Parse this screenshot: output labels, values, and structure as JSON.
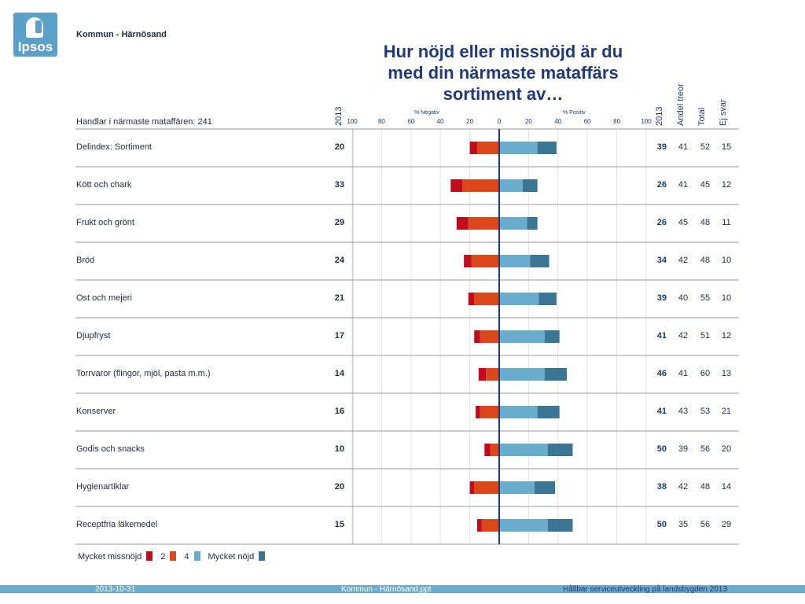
{
  "logo": {
    "text": "Ipsos"
  },
  "org": "Kommun - Härnösand",
  "title_lines": [
    "Hur nöjd eller missnöjd är du",
    "med din närmaste mataffärs",
    "sortiment av…"
  ],
  "base_label": "Handlar i närmaste mataffären: 241",
  "headers": {
    "neg_year": "2013",
    "pos_year": "2013",
    "andel": "Andel treor",
    "total": "Total",
    "ej": "Ej svar"
  },
  "colors": {
    "very_dissatisfied": "#c00d1e",
    "level2": "#d9471a",
    "level4": "#6aaccc",
    "very_satisfied": "#3a7594",
    "axis": "#1f3a74"
  },
  "legend": [
    {
      "label": "Mycket missnöjd",
      "swatch": null
    },
    {
      "label": "",
      "swatch": "very_dissatisfied"
    },
    {
      "label": "2",
      "swatch": "level2"
    },
    {
      "label": "4",
      "swatch": "level4"
    },
    {
      "label": "Mycket nöjd",
      "swatch": "very_satisfied"
    }
  ],
  "footer": {
    "date": "2013-10-31",
    "file": "Kommun - Härnösand.ppt",
    "project": "Hållbar serviceutveckling på landsbygden 2013"
  },
  "chart_data": {
    "type": "bar",
    "orientation": "horizontal-diverging-stacked",
    "title": "Hur nöjd eller missnöjd är du med din närmaste mataffärs sortiment av…",
    "axis_label_negative": "% Negativ",
    "axis_label_positive": "% Positiv",
    "x_ticks": [
      "100",
      "80",
      "60",
      "40",
      "20",
      "0",
      "20",
      "40",
      "60",
      "80",
      "100"
    ],
    "xlim": [
      -100,
      100
    ],
    "grid": true,
    "legend_position": "bottom-left",
    "categories": [
      "Delindex: Sortiment",
      "Kött och chark",
      "Frukt och grönt",
      "Bröd",
      "Ost och mejeri",
      "Djupfryst",
      "Torrvaror (flingor, mjöl, pasta m.m.)",
      "Konserver",
      "Godis och snacks",
      "Hygienartiklar",
      "Receptfria läkemedel"
    ],
    "series": [
      {
        "key": "very_dissatisfied",
        "values": [
          5,
          8,
          8,
          5,
          4,
          4,
          5,
          3,
          4,
          3,
          3
        ]
      },
      {
        "key": "level2",
        "values": [
          15,
          25,
          21,
          19,
          17,
          13,
          9,
          13,
          6,
          17,
          12
        ]
      },
      {
        "key": "level4",
        "values": [
          26,
          16,
          19,
          21,
          27,
          31,
          31,
          26,
          33,
          24,
          33
        ]
      },
      {
        "key": "very_satisfied",
        "values": [
          13,
          10,
          7,
          13,
          12,
          10,
          15,
          15,
          17,
          14,
          17
        ]
      }
    ],
    "negative_2013": [
      "20",
      "33",
      "29",
      "24",
      "21",
      "17",
      "14",
      "16",
      "10",
      "20",
      "15"
    ],
    "positive_2013": [
      "39",
      "26",
      "26",
      "34",
      "39",
      "41",
      "46",
      "41",
      "50",
      "38",
      "50"
    ],
    "andel_treor": [
      "41",
      "41",
      "45",
      "42",
      "40",
      "42",
      "41",
      "43",
      "39",
      "42",
      "35"
    ],
    "total": [
      "52",
      "45",
      "48",
      "48",
      "55",
      "51",
      "60",
      "53",
      "56",
      "48",
      "56"
    ],
    "ej_svar": [
      "15",
      "12",
      "11",
      "10",
      "10",
      "12",
      "13",
      "21",
      "20",
      "14",
      "29"
    ]
  }
}
